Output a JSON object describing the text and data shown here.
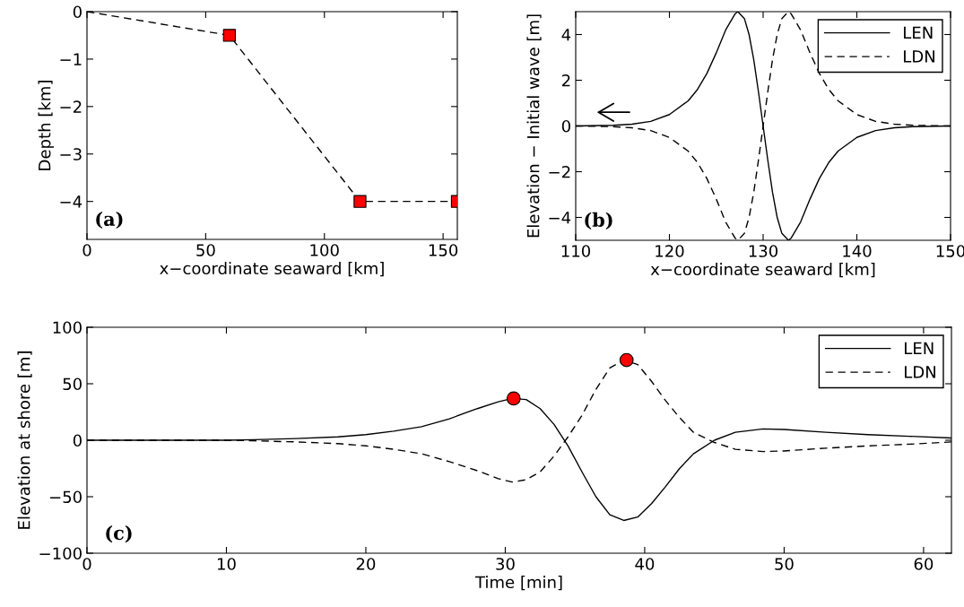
{
  "chart_data": [
    {
      "type": "line",
      "xlabel": "x−coordinate seaward [km]",
      "ylabel": "Depth [km]",
      "xlim": [
        0,
        156
      ],
      "ylim": [
        -4.8,
        0
      ],
      "xticks": [
        0,
        50,
        100,
        150
      ],
      "yticks": [
        -4,
        -3,
        -2,
        -1,
        0
      ],
      "grid": false,
      "legend": false,
      "annotations": [
        "(a)"
      ],
      "series": [
        {
          "color": "#000000",
          "line_style": "dashed",
          "marker": "none",
          "x": [
            0,
            60,
            115,
            156
          ],
          "values": [
            0,
            -0.5,
            -4,
            -4
          ]
        },
        {
          "type": "scatter",
          "color": "#ff0000",
          "marker": "square",
          "x": [
            60,
            115,
            156
          ],
          "values": [
            -0.5,
            -4,
            -4
          ]
        }
      ]
    },
    {
      "type": "line",
      "xlabel": "x−coordinate seaward [km]",
      "ylabel": "Elevation − Initial wave [m]",
      "xlim": [
        110,
        150
      ],
      "ylim": [
        -5,
        5
      ],
      "xticks": [
        110,
        120,
        130,
        140,
        150
      ],
      "yticks": [
        -4,
        -2,
        0,
        2,
        4
      ],
      "grid": false,
      "legend": "top right",
      "annotations": [
        "(b)"
      ],
      "series": [
        {
          "name": "LEN",
          "color": "#000000",
          "line_style": "solid",
          "marker": "none",
          "x": [
            110,
            114,
            116,
            118,
            120,
            122,
            123,
            124,
            125,
            126,
            127,
            127.3,
            128,
            128.5,
            129,
            129.5,
            130,
            130.5,
            131,
            131.5,
            132,
            132.7,
            133,
            134,
            135,
            136,
            137,
            138,
            140,
            142,
            144,
            146,
            150
          ],
          "values": [
            0,
            0.03,
            0.08,
            0.2,
            0.5,
            1.1,
            1.6,
            2.3,
            3.2,
            4.2,
            4.9,
            5.0,
            4.7,
            4.0,
            2.9,
            1.5,
            0,
            -1.5,
            -2.9,
            -4.0,
            -4.7,
            -5.0,
            -4.9,
            -4.2,
            -3.2,
            -2.3,
            -1.6,
            -1.1,
            -0.5,
            -0.2,
            -0.08,
            -0.03,
            0
          ]
        },
        {
          "name": "LDN",
          "color": "#000000",
          "line_style": "dashed",
          "marker": "none",
          "x": [
            110,
            114,
            116,
            118,
            120,
            122,
            123,
            124,
            125,
            126,
            127,
            127.3,
            128,
            128.5,
            129,
            129.5,
            130,
            130.5,
            131,
            131.5,
            132,
            132.7,
            133,
            134,
            135,
            136,
            137,
            138,
            140,
            142,
            144,
            146,
            150
          ],
          "values": [
            0,
            -0.03,
            -0.08,
            -0.2,
            -0.5,
            -1.1,
            -1.6,
            -2.3,
            -3.2,
            -4.2,
            -4.9,
            -5.0,
            -4.7,
            -4.0,
            -2.9,
            -1.5,
            0,
            1.5,
            2.9,
            4.0,
            4.7,
            5.0,
            4.9,
            4.2,
            3.2,
            2.3,
            1.6,
            1.1,
            0.5,
            0.2,
            0.08,
            0.03,
            0
          ]
        }
      ]
    },
    {
      "type": "line",
      "xlabel": "Time [min]",
      "ylabel": "Elevation at shore [m]",
      "xlim": [
        0,
        62
      ],
      "ylim": [
        -100,
        100
      ],
      "xticks": [
        0,
        10,
        20,
        30,
        40,
        50,
        60
      ],
      "yticks": [
        -100,
        -50,
        0,
        50,
        100
      ],
      "grid": false,
      "legend": "top right",
      "annotations": [
        "(c)"
      ],
      "series": [
        {
          "name": "LEN",
          "color": "#000000",
          "line_style": "solid",
          "marker": "none",
          "x": [
            0,
            10,
            12,
            15,
            18,
            20,
            22,
            24,
            26,
            28,
            29.5,
            30.5,
            31.5,
            32.5,
            33.5,
            34.5,
            35.5,
            36.5,
            37.5,
            38.5,
            39.5,
            40.5,
            41.5,
            42.5,
            43.5,
            45,
            46.5,
            48.5,
            50,
            53,
            56,
            59,
            62
          ],
          "values": [
            0,
            0,
            0.5,
            1.5,
            3,
            5,
            8,
            12,
            19,
            28,
            34,
            37,
            36,
            28,
            14,
            -5,
            -28,
            -50,
            -66,
            -71,
            -68,
            -56,
            -41,
            -25,
            -12,
            0,
            7,
            10,
            9.5,
            7,
            5,
            3.5,
            2
          ]
        },
        {
          "name": "LDN",
          "color": "#000000",
          "line_style": "dashed",
          "marker": "none",
          "x": [
            0,
            10,
            12,
            15,
            18,
            20,
            22,
            24,
            26,
            28,
            29.5,
            30.5,
            31.5,
            32.5,
            33.5,
            34.5,
            35.5,
            36.5,
            37.5,
            38.5,
            39.5,
            40.5,
            41.5,
            42.5,
            43.5,
            45,
            46.5,
            48.5,
            50,
            53,
            56,
            59,
            62
          ],
          "values": [
            0,
            0,
            -0.5,
            -1.5,
            -3,
            -5,
            -8,
            -12,
            -19,
            -27,
            -34,
            -37,
            -35,
            -28,
            -14,
            3,
            22,
            45,
            64,
            71,
            67,
            52,
            35,
            20,
            7,
            -2,
            -8,
            -10,
            -9.5,
            -7,
            -5,
            -3.5,
            -1.5
          ]
        },
        {
          "type": "scatter",
          "color": "#ff0000",
          "marker": "circle",
          "x": [
            30.6,
            38.7
          ],
          "values": [
            37,
            71
          ]
        }
      ]
    }
  ]
}
